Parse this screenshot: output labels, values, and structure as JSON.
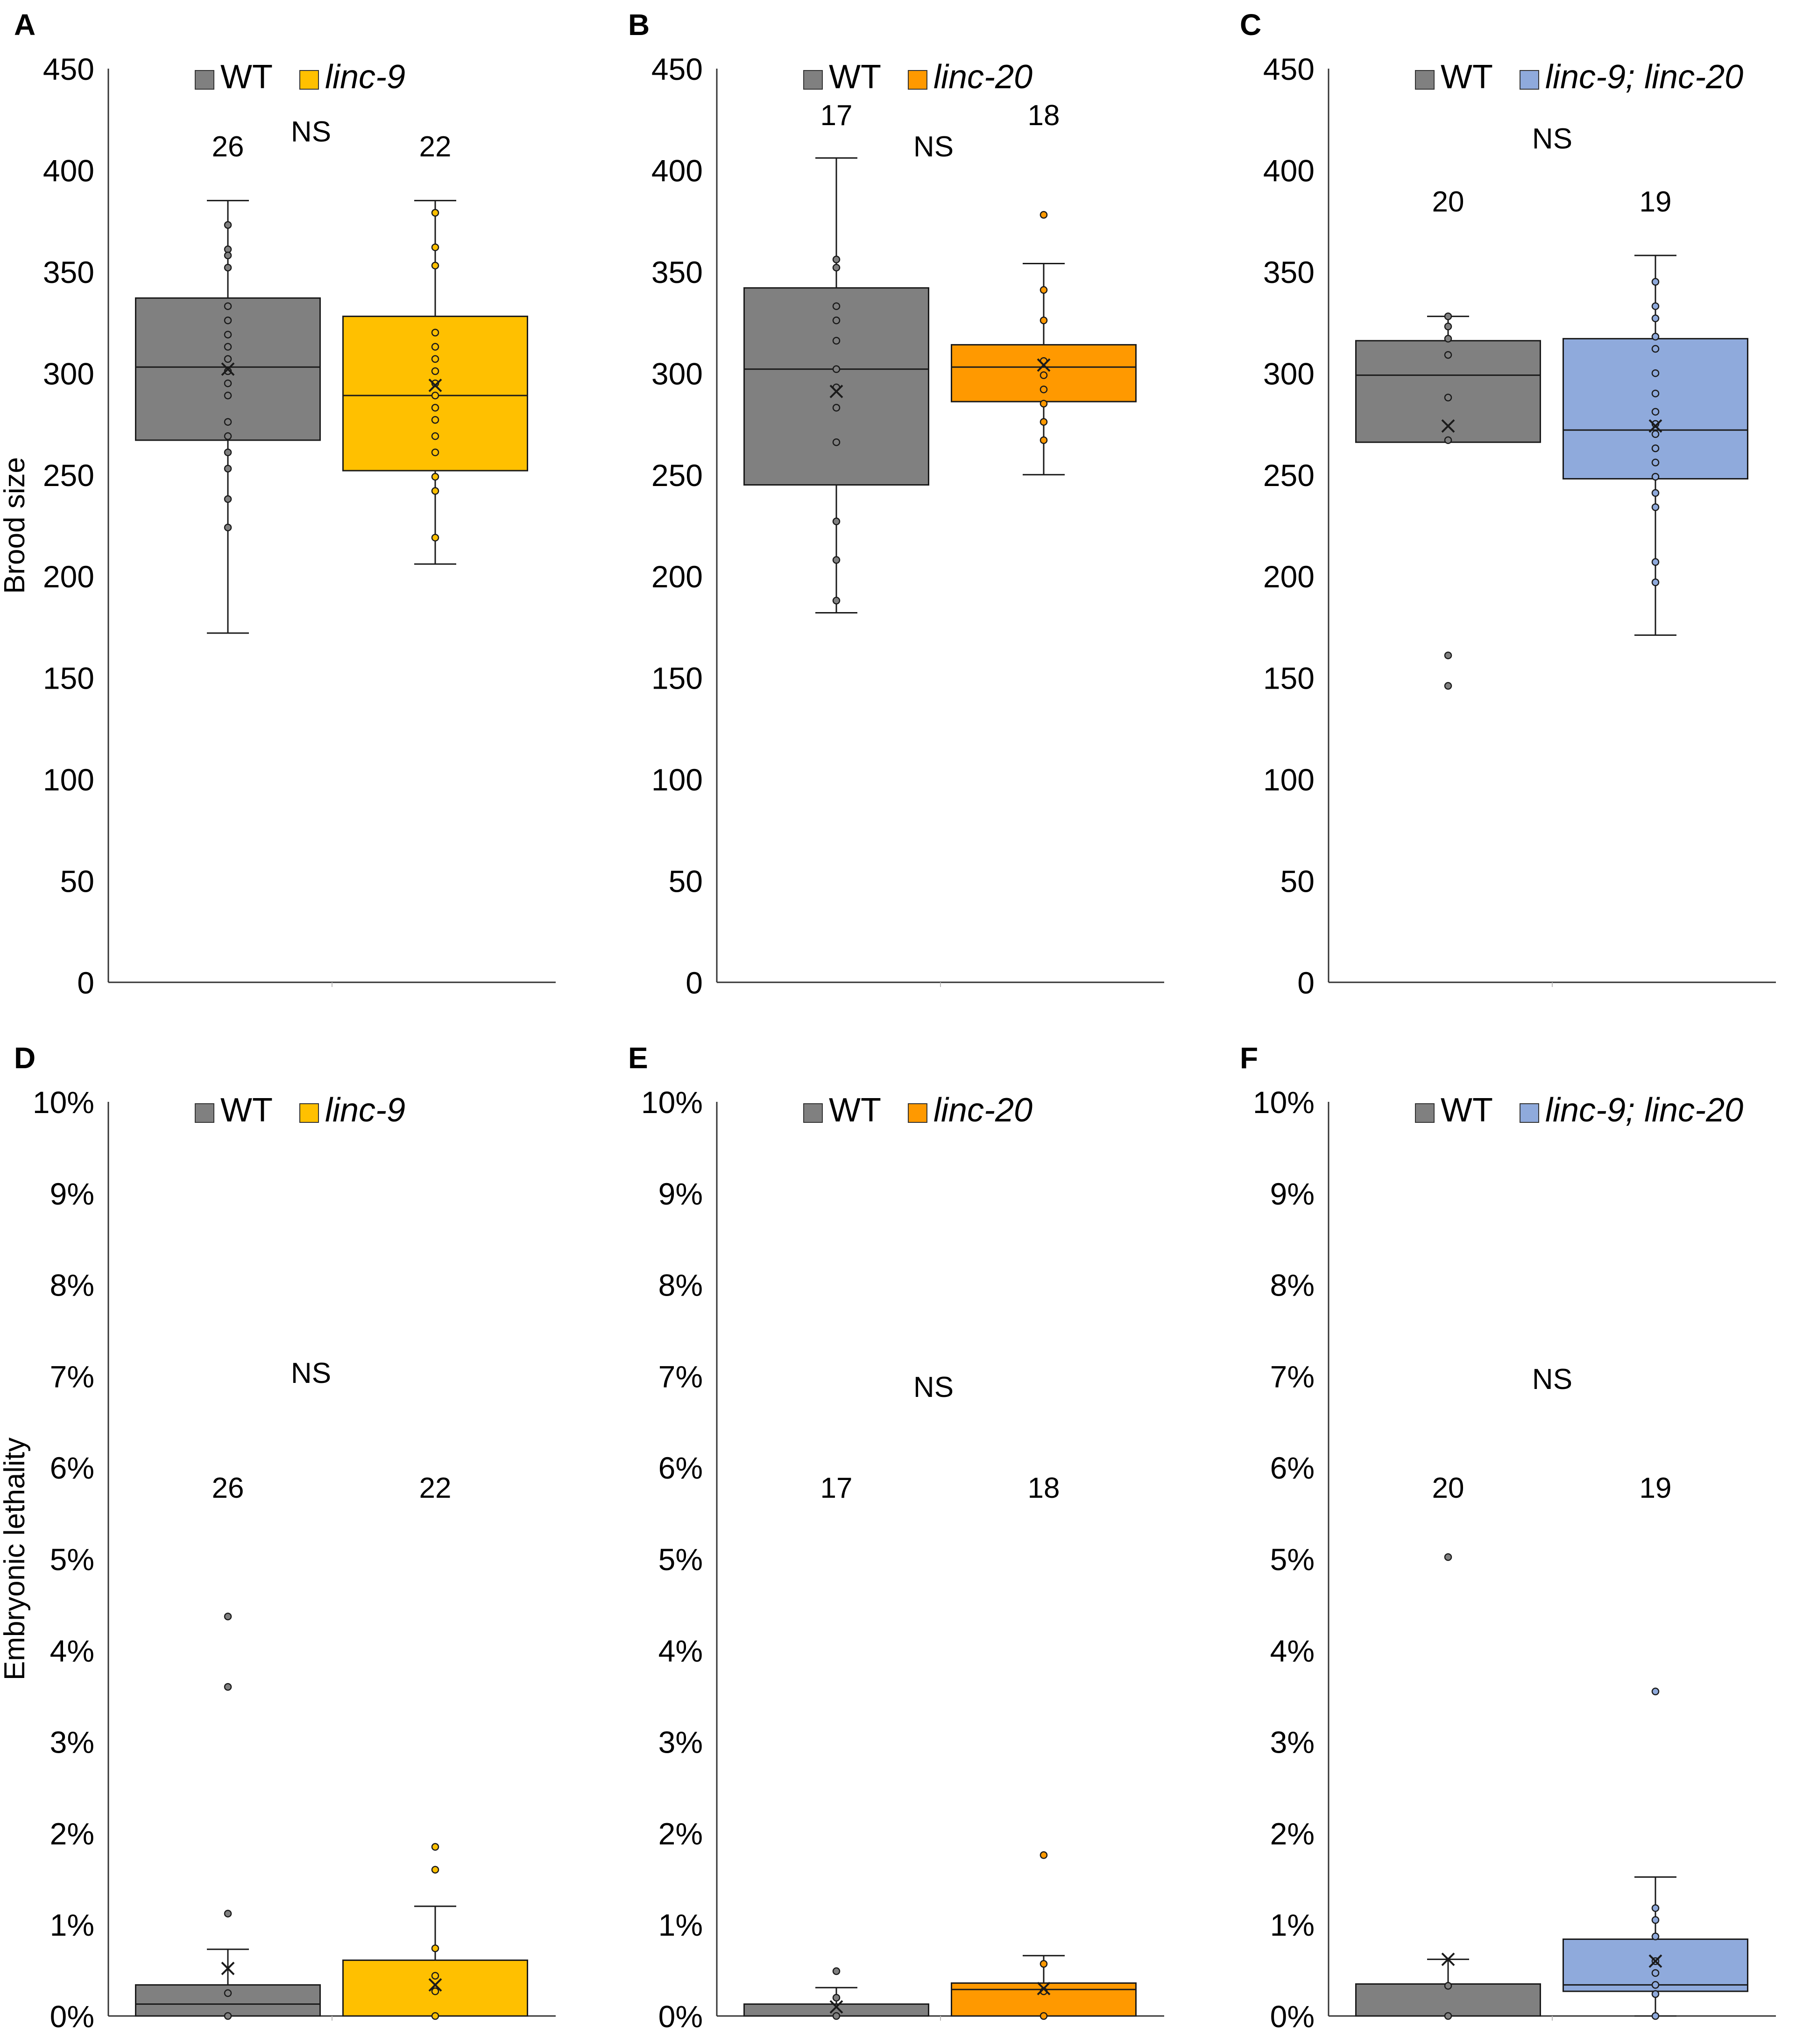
{
  "colors": {
    "wt": "#808080",
    "linc9": "#FFC000",
    "linc20": "#FF9900",
    "double": "#8FAADC",
    "stroke": "#1a1a1a"
  },
  "chart_data": [
    {
      "panel": "A",
      "type": "box",
      "ylabel": "Brood size",
      "ylim": [
        0,
        450
      ],
      "yticks": [
        0,
        50,
        100,
        150,
        200,
        250,
        300,
        350,
        400,
        450
      ],
      "legend": [
        "WT",
        "linc-9"
      ],
      "significance": "NS",
      "series": [
        {
          "name": "WT",
          "color_key": "wt",
          "n_label": "26",
          "whisker_low": 172,
          "q1": 267,
          "median": 303,
          "q3": 337,
          "whisker_high": 385,
          "mean": 302,
          "points": [
            373,
            361,
            358,
            352,
            333,
            326,
            319,
            313,
            307,
            301,
            295,
            289,
            276,
            269,
            261,
            253,
            238,
            224
          ]
        },
        {
          "name": "linc-9",
          "color_key": "linc9",
          "n_label": "22",
          "whisker_low": 206,
          "q1": 252,
          "median": 289,
          "q3": 328,
          "whisker_high": 385,
          "mean": 294,
          "points": [
            379,
            362,
            353,
            320,
            313,
            307,
            301,
            295,
            289,
            283,
            277,
            269,
            261,
            249,
            242,
            219
          ]
        }
      ]
    },
    {
      "panel": "B",
      "type": "box",
      "ylabel": "",
      "ylim": [
        0,
        450
      ],
      "yticks": [
        0,
        50,
        100,
        150,
        200,
        250,
        300,
        350,
        400,
        450
      ],
      "legend": [
        "WT",
        "linc-20"
      ],
      "significance": "NS",
      "series": [
        {
          "name": "WT",
          "color_key": "wt",
          "n_label": "17",
          "whisker_low": 182,
          "q1": 245,
          "median": 302,
          "q3": 342,
          "whisker_high": 406,
          "mean": 291,
          "points": [
            356,
            352,
            333,
            326,
            316,
            302,
            293,
            283,
            266,
            227,
            208,
            188
          ]
        },
        {
          "name": "linc-20",
          "color_key": "linc20",
          "n_label": "18",
          "whisker_low": 250,
          "q1": 286,
          "median": 303,
          "q3": 314,
          "whisker_high": 354,
          "mean": 304,
          "points": [
            378,
            341,
            326,
            306,
            299,
            292,
            285,
            276,
            267
          ]
        }
      ]
    },
    {
      "panel": "C",
      "type": "box",
      "ylabel": "",
      "ylim": [
        0,
        450
      ],
      "yticks": [
        0,
        50,
        100,
        150,
        200,
        250,
        300,
        350,
        400,
        450
      ],
      "legend": [
        "WT",
        "linc-9; linc-20"
      ],
      "significance": "NS",
      "series": [
        {
          "name": "WT",
          "color_key": "wt",
          "n_label": "20",
          "whisker_low": 266,
          "q1": 266,
          "median": 299,
          "q3": 316,
          "whisker_high": 328,
          "mean": 274,
          "points": [
            328,
            323,
            317,
            309,
            288,
            267,
            161,
            146
          ]
        },
        {
          "name": "linc-9; linc-20",
          "color_key": "double",
          "n_label": "19",
          "whisker_low": 171,
          "q1": 248,
          "median": 272,
          "q3": 317,
          "whisker_high": 358,
          "mean": 274,
          "points": [
            345,
            333,
            327,
            318,
            312,
            300,
            290,
            281,
            275,
            270,
            263,
            256,
            249,
            241,
            234,
            207,
            197
          ]
        }
      ]
    },
    {
      "panel": "D",
      "type": "box",
      "ylabel": "Embryonic lethality",
      "ylim": [
        0,
        10
      ],
      "yticks": [
        0,
        1,
        2,
        3,
        4,
        5,
        6,
        7,
        8,
        9,
        10
      ],
      "y_unit": "%",
      "legend": [
        "WT",
        "linc-9"
      ],
      "significance": "NS",
      "series": [
        {
          "name": "WT",
          "color_key": "wt",
          "n_label": "26",
          "whisker_low": 0,
          "q1": 0,
          "median": 0.13,
          "q3": 0.34,
          "whisker_high": 0.73,
          "mean": 0.52,
          "points": [
            4.37,
            3.6,
            1.12,
            0.25,
            0.0
          ]
        },
        {
          "name": "linc-9",
          "color_key": "linc9",
          "n_label": "22",
          "whisker_low": 0,
          "q1": 0,
          "median": 0,
          "q3": 0.61,
          "whisker_high": 1.2,
          "mean": 0.34,
          "points": [
            1.85,
            1.6,
            0.74,
            0.44,
            0.27,
            0.0
          ]
        }
      ]
    },
    {
      "panel": "E",
      "type": "box",
      "ylabel": "",
      "ylim": [
        0,
        10
      ],
      "yticks": [
        0,
        1,
        2,
        3,
        4,
        5,
        6,
        7,
        8,
        9,
        10
      ],
      "y_unit": "%",
      "legend": [
        "WT",
        "linc-20"
      ],
      "significance": "NS",
      "series": [
        {
          "name": "WT",
          "color_key": "wt",
          "n_label": "17",
          "whisker_low": 0,
          "q1": 0,
          "median": 0,
          "q3": 0.13,
          "whisker_high": 0.31,
          "mean": 0.1,
          "points": [
            0.49,
            0.2,
            0.0
          ]
        },
        {
          "name": "linc-20",
          "color_key": "linc20",
          "n_label": "18",
          "whisker_low": 0,
          "q1": 0,
          "median": 0.29,
          "q3": 0.36,
          "whisker_high": 0.66,
          "mean": 0.3,
          "points": [
            1.76,
            0.57,
            0.27,
            0.0
          ]
        }
      ]
    },
    {
      "panel": "F",
      "type": "box",
      "ylabel": "",
      "ylim": [
        0,
        10
      ],
      "yticks": [
        0,
        1,
        2,
        3,
        4,
        5,
        6,
        7,
        8,
        9,
        10
      ],
      "y_unit": "%",
      "legend": [
        "WT",
        "linc-9; linc-20"
      ],
      "significance": "NS",
      "series": [
        {
          "name": "WT",
          "color_key": "wt",
          "n_label": "20",
          "whisker_low": 0,
          "q1": 0,
          "median": 0,
          "q3": 0.35,
          "whisker_high": 0.62,
          "mean": 0.62,
          "points": [
            5.02,
            0.33,
            0.0
          ]
        },
        {
          "name": "linc-9; linc-20",
          "color_key": "double",
          "n_label": "19",
          "whisker_low": 0,
          "q1": 0.27,
          "median": 0.34,
          "q3": 0.84,
          "whisker_high": 1.52,
          "mean": 0.6,
          "points": [
            3.55,
            1.18,
            1.05,
            0.87,
            0.6,
            0.47,
            0.34,
            0.24,
            0.0
          ]
        }
      ]
    }
  ]
}
